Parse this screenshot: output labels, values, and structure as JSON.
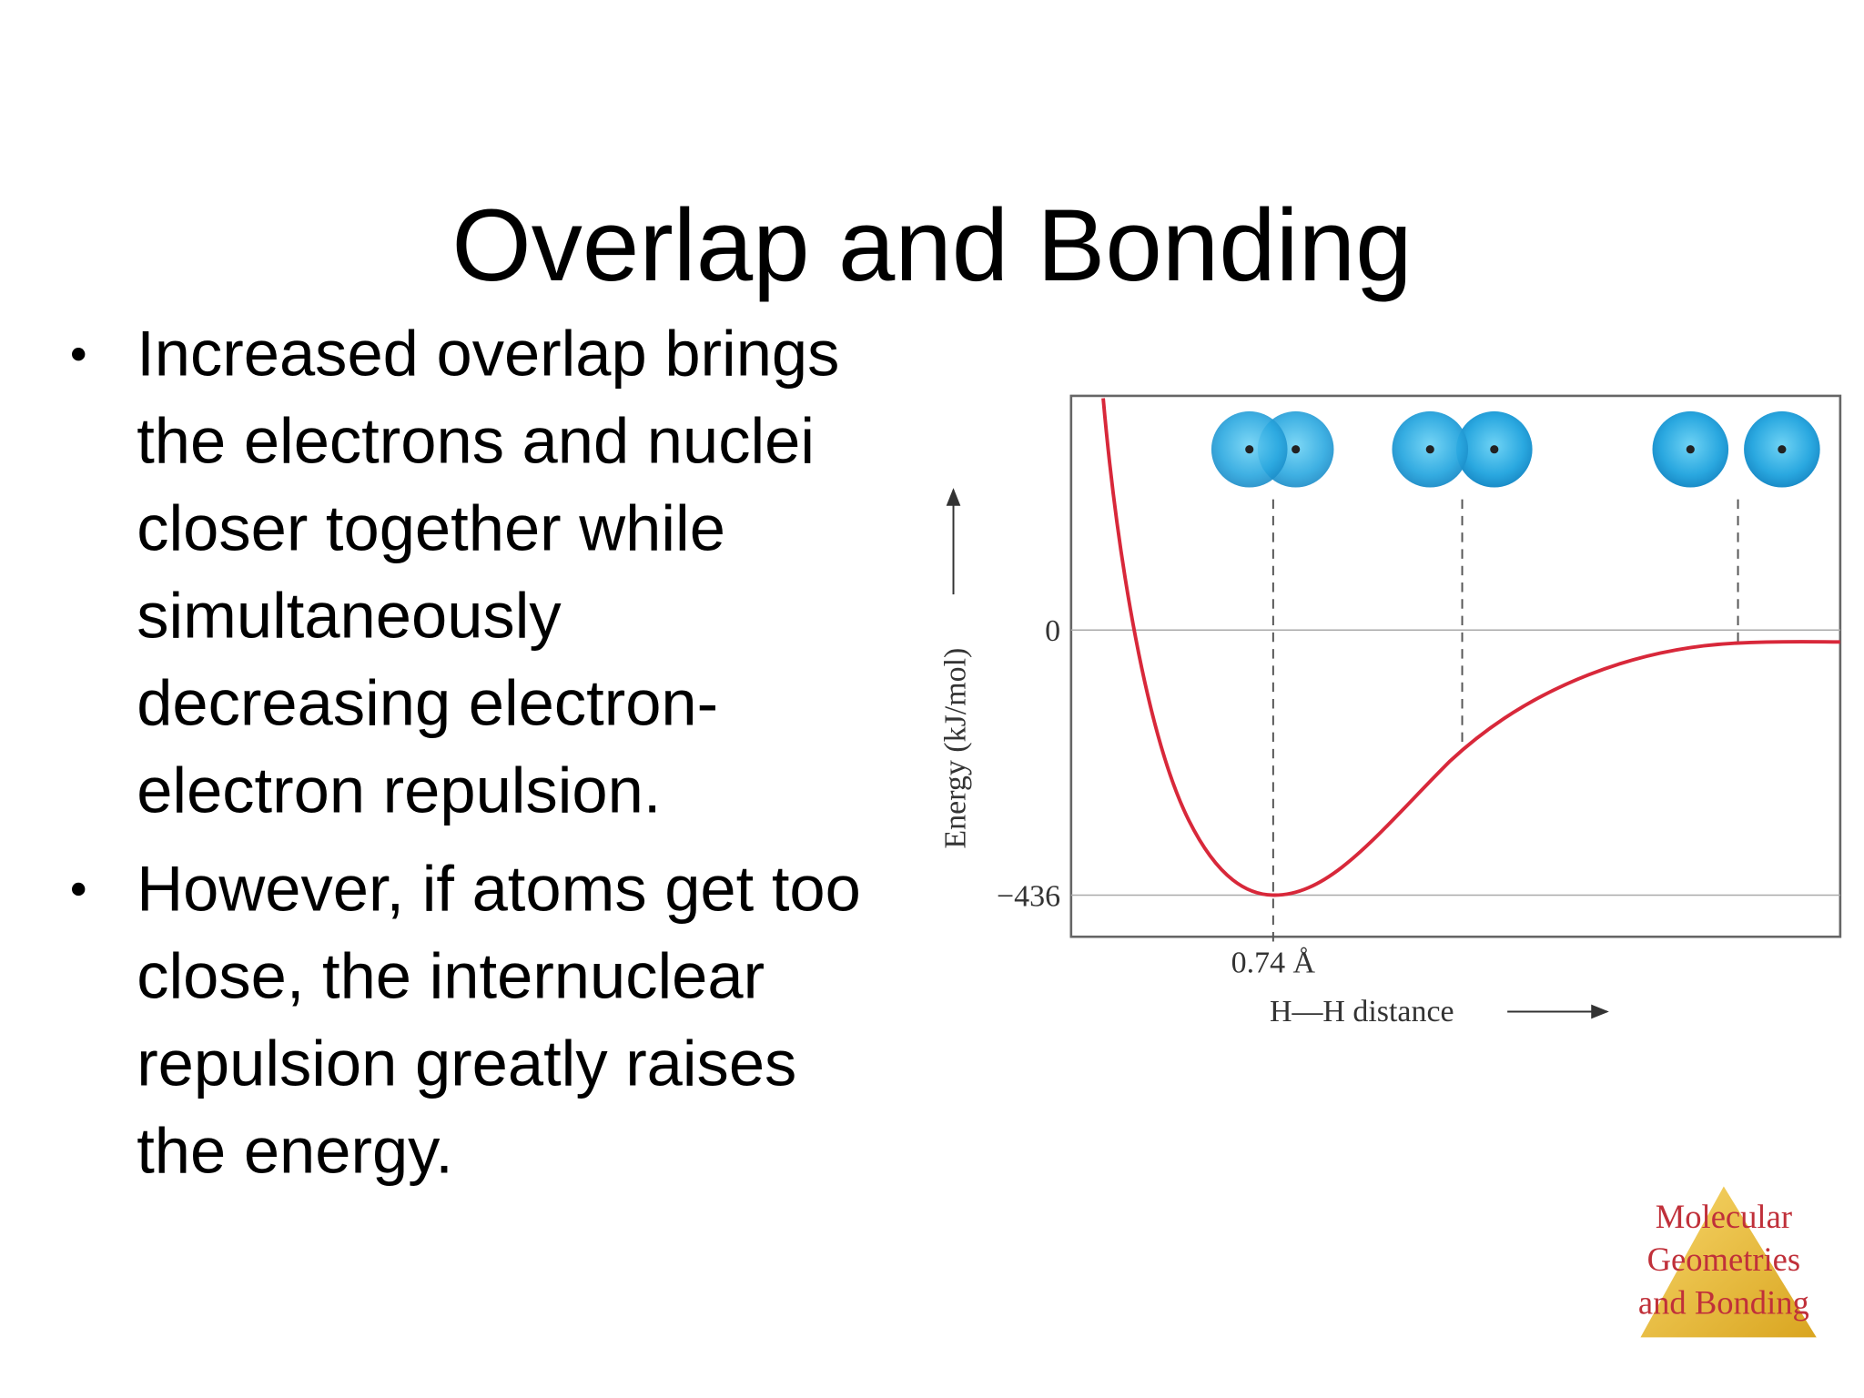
{
  "title": "Overlap and Bonding",
  "bullets": [
    [
      "Increased overlap brings",
      "the electrons and nuclei",
      "closer together while",
      "simultaneously",
      "decreasing electron-",
      "electron repulsion."
    ],
    [
      "However, if atoms get too",
      "close, the internuclear",
      "repulsion greatly raises",
      "the energy."
    ]
  ],
  "figure": {
    "y_label": "Energy (kJ/mol)",
    "yticks": [
      0,
      {
        "value": -436,
        "label": "−436"
      }
    ],
    "x_marker": "0.74 Å",
    "x_label": "H—H distance"
  },
  "footer": [
    "Molecular",
    "Geometries",
    "and Bonding"
  ]
}
